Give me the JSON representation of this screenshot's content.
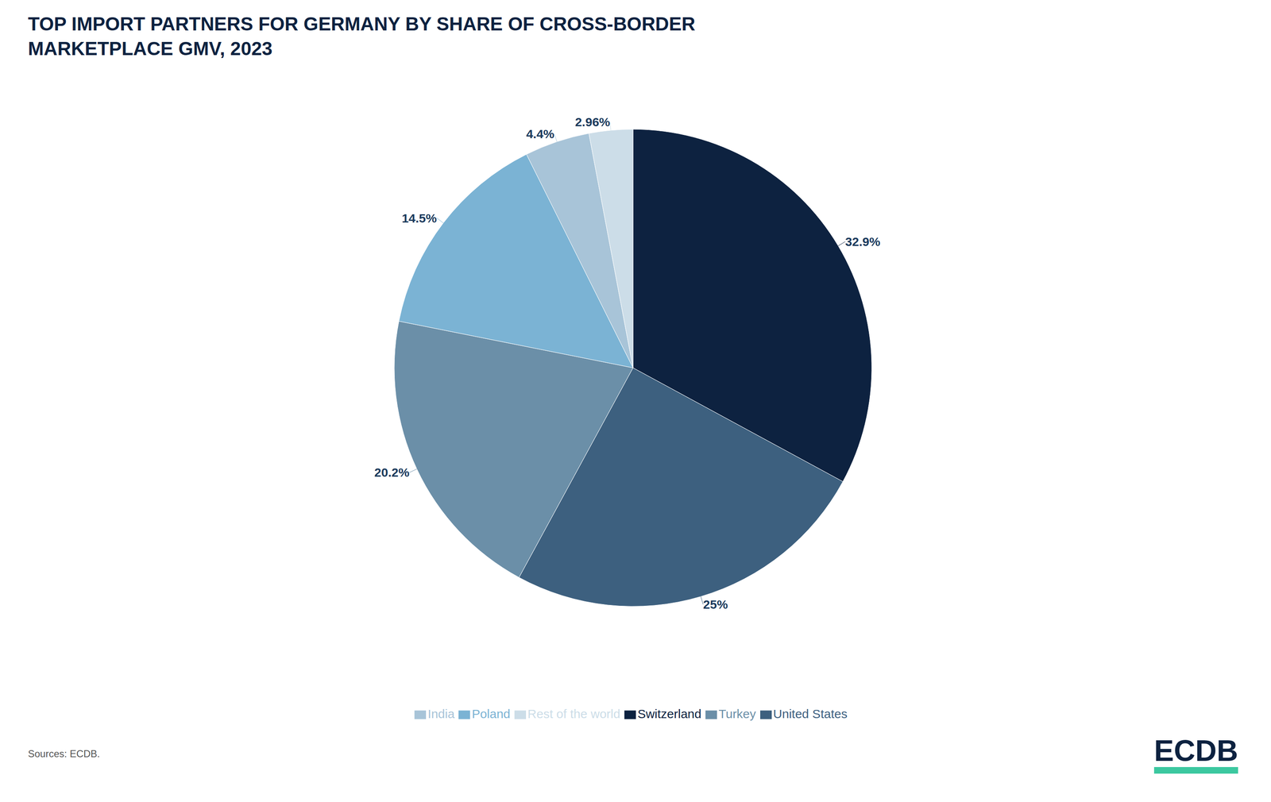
{
  "chart_data": {
    "type": "pie",
    "title": "TOP IMPORT PARTNERS FOR GERMANY BY SHARE OF CROSS-BORDER",
    "subtitle": "MARKETPLACE GMV, 2023",
    "categories": [
      "Switzerland",
      "United States",
      "Turkey",
      "Poland",
      "India",
      "Rest of the world"
    ],
    "values": [
      32.9,
      25.0,
      20.2,
      14.5,
      4.4,
      2.96
    ],
    "value_labels": [
      "32.9%",
      "25%",
      "20.2%",
      "14.5%",
      "4.4%",
      "2.96%"
    ],
    "data_labels": true,
    "colors": [
      "#0d2240",
      "#3d607f",
      "#6b8fa8",
      "#7bb3d4",
      "#a8c4d8",
      "#ccdde8"
    ],
    "legend": "bottom",
    "annotations": [
      "Sources: ECDB.",
      "ECDB"
    ]
  }
}
